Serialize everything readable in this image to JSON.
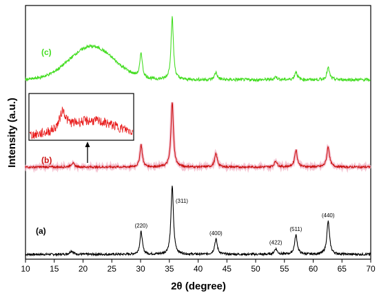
{
  "chart_data": {
    "type": "line",
    "xlabel": "2θ (degree)",
    "ylabel": "Intensity (a.u.)",
    "xlim": [
      10,
      70
    ],
    "xticks": [
      10,
      15,
      20,
      25,
      30,
      35,
      40,
      45,
      50,
      55,
      60,
      65,
      70
    ],
    "y_ticks_shown": false,
    "grid": false,
    "legend": "none",
    "peaks_2theta": [
      18.3,
      30.1,
      35.5,
      43.1,
      53.5,
      57.0,
      62.6
    ],
    "series": [
      {
        "label": "(a)",
        "color": "#000000",
        "peaks": [
          {
            "x": 18.0,
            "height": 0.05,
            "width": 0.35
          },
          {
            "x": 30.1,
            "height": 0.33,
            "width": 0.25
          },
          {
            "x": 35.5,
            "height": 1.0,
            "width": 0.25
          },
          {
            "x": 43.1,
            "height": 0.22,
            "width": 0.28
          },
          {
            "x": 53.5,
            "height": 0.08,
            "width": 0.3
          },
          {
            "x": 57.0,
            "height": 0.28,
            "width": 0.28
          },
          {
            "x": 62.6,
            "height": 0.48,
            "width": 0.28
          }
        ],
        "hump": null
      },
      {
        "label": "(b)",
        "color": "#cc1111",
        "peaks": [
          {
            "x": 18.2,
            "height": 0.06,
            "width": 0.35
          },
          {
            "x": 30.1,
            "height": 0.34,
            "width": 0.25
          },
          {
            "x": 35.5,
            "height": 1.0,
            "width": 0.25
          },
          {
            "x": 43.1,
            "height": 0.2,
            "width": 0.28
          },
          {
            "x": 53.5,
            "height": 0.09,
            "width": 0.3
          },
          {
            "x": 57.0,
            "height": 0.26,
            "width": 0.28
          },
          {
            "x": 62.6,
            "height": 0.31,
            "width": 0.28
          }
        ],
        "hump": null
      },
      {
        "label": "(c)",
        "color": "#44dd22",
        "peaks": [
          {
            "x": 30.1,
            "height": 0.33,
            "width": 0.25
          },
          {
            "x": 35.5,
            "height": 0.84,
            "width": 0.25
          },
          {
            "x": 43.1,
            "height": 0.1,
            "width": 0.28
          },
          {
            "x": 53.5,
            "height": 0.04,
            "width": 0.3
          },
          {
            "x": 57.0,
            "height": 0.11,
            "width": 0.28
          },
          {
            "x": 62.6,
            "height": 0.16,
            "width": 0.28
          }
        ],
        "hump": {
          "center": 21.5,
          "width": 5.5,
          "height": 0.45
        }
      }
    ],
    "hkl_labels": [
      {
        "text": "(220)",
        "x": 30.1
      },
      {
        "text": "(311)",
        "x": 35.5
      },
      {
        "text": "(400)",
        "x": 43.1
      },
      {
        "text": "(422)",
        "x": 53.5
      },
      {
        "text": "(511)",
        "x": 57.0
      },
      {
        "text": "(440)",
        "x": 62.6
      }
    ],
    "inset": {
      "xrange": [
        15,
        25
      ],
      "description": "zoomed region of trace (b)"
    }
  }
}
